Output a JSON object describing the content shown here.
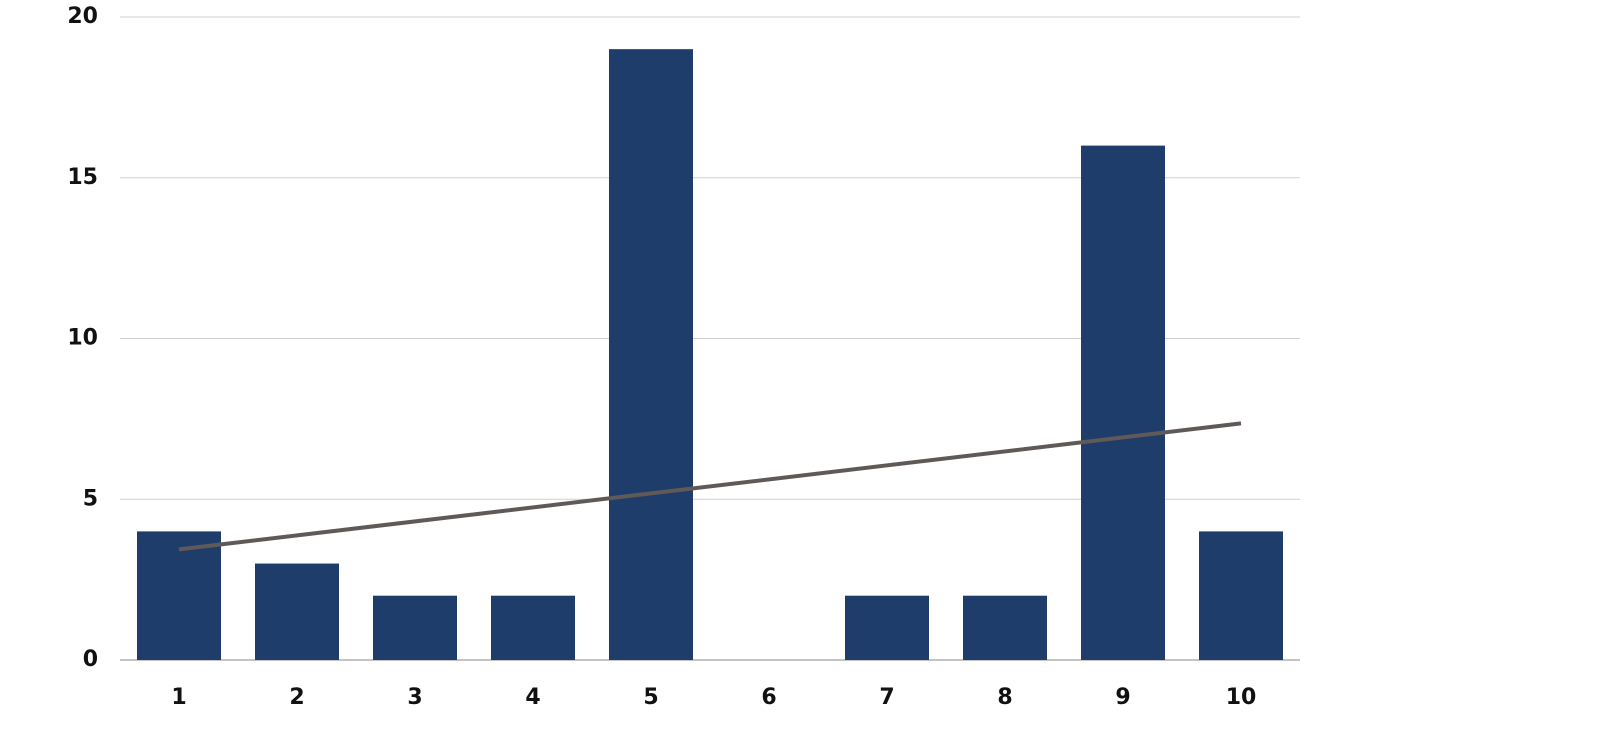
{
  "chart_data": {
    "type": "bar",
    "categories": [
      "1",
      "2",
      "3",
      "4",
      "5",
      "6",
      "7",
      "8",
      "9",
      "10"
    ],
    "values": [
      4,
      3,
      2,
      2,
      19,
      0,
      2,
      2,
      16,
      4
    ],
    "color": "#1f3d6b",
    "trendline": {
      "color": "#5f5a57",
      "values": [
        3.44,
        7.36
      ]
    },
    "ylim": [
      0,
      20
    ],
    "yticks": [
      0,
      5,
      10,
      15,
      20
    ],
    "grid": true
  }
}
